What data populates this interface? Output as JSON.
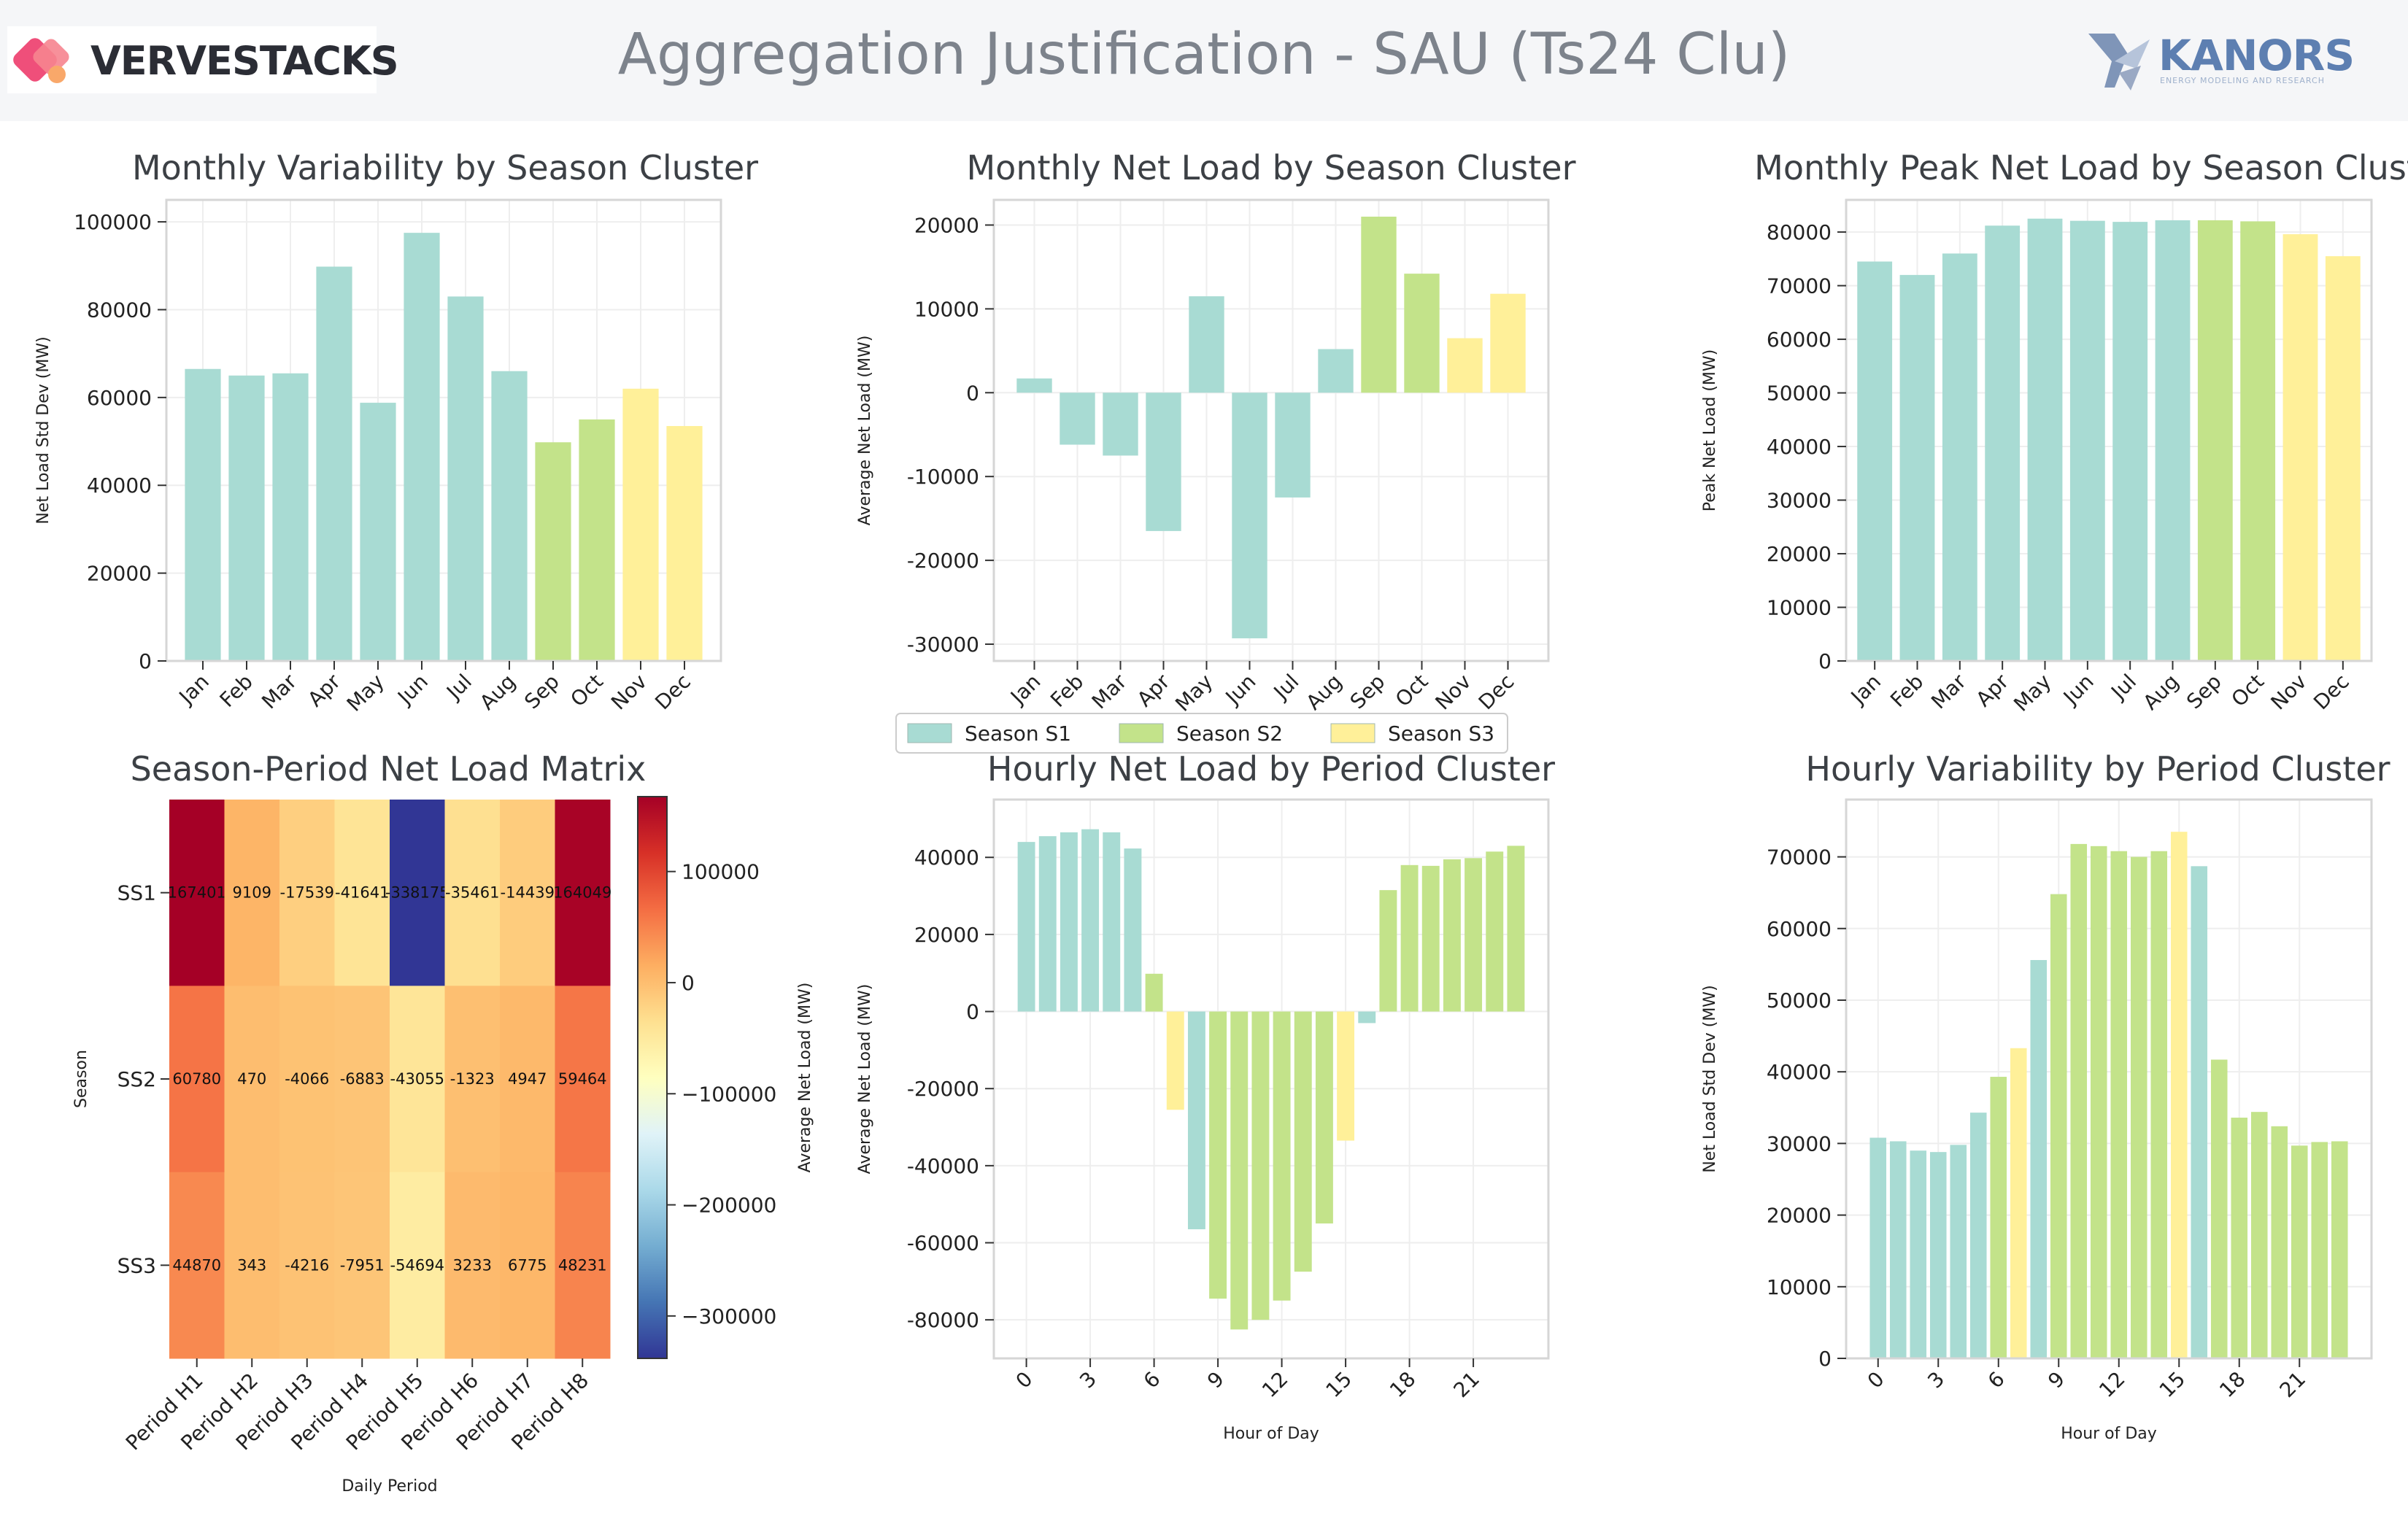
{
  "header": {
    "title": "Aggregation Justification - SAU (Ts24 Clu)",
    "left_logo_text": "VERVESTACKS",
    "right_logo_text": "KANORS",
    "right_logo_tagline": "ENERGY MODELING AND RESEARCH"
  },
  "colors": {
    "S1": "#a8dbd3",
    "S2": "#c3e38a",
    "S3": "#fff099"
  },
  "legend": {
    "items": [
      {
        "label": "Season S1",
        "color": "#a8dbd3"
      },
      {
        "label": "Season S2",
        "color": "#c3e38a"
      },
      {
        "label": "Season S3",
        "color": "#fff099"
      }
    ]
  },
  "chart_data": [
    {
      "type": "bar",
      "title": "Monthly Variability by Season Cluster",
      "xlabel": "",
      "ylabel": "Net Load Std Dev (MW)",
      "categories": [
        "Jan",
        "Feb",
        "Mar",
        "Apr",
        "May",
        "Jun",
        "Jul",
        "Aug",
        "Sep",
        "Oct",
        "Nov",
        "Dec"
      ],
      "values": [
        66500,
        65000,
        65500,
        89800,
        58800,
        97500,
        83000,
        66000,
        49800,
        55000,
        62000,
        53500
      ],
      "cluster": [
        "S1",
        "S1",
        "S1",
        "S1",
        "S1",
        "S1",
        "S1",
        "S1",
        "S2",
        "S2",
        "S3",
        "S3"
      ],
      "ylim": [
        0,
        105000
      ],
      "yticks": [
        0,
        20000,
        40000,
        60000,
        80000,
        100000
      ]
    },
    {
      "type": "bar",
      "title": "Monthly Net Load by Season Cluster",
      "xlabel": "",
      "ylabel": "Average Net Load (MW)",
      "categories": [
        "Jan",
        "Feb",
        "Mar",
        "Apr",
        "May",
        "Jun",
        "Jul",
        "Aug",
        "Sep",
        "Oct",
        "Nov",
        "Dec"
      ],
      "values": [
        1700,
        -6200,
        -7500,
        -16500,
        11500,
        -29300,
        -12500,
        5200,
        21000,
        14200,
        6500,
        11800
      ],
      "cluster": [
        "S1",
        "S1",
        "S1",
        "S1",
        "S1",
        "S1",
        "S1",
        "S1",
        "S2",
        "S2",
        "S3",
        "S3"
      ],
      "ylim": [
        -32000,
        23000
      ],
      "yticks": [
        -30000,
        -20000,
        -10000,
        0,
        10000,
        20000
      ]
    },
    {
      "type": "bar",
      "title": "Monthly Peak Net Load by Season Clust",
      "xlabel": "",
      "ylabel": "Peak Net Load (MW)",
      "categories": [
        "Jan",
        "Feb",
        "Mar",
        "Apr",
        "May",
        "Jun",
        "Jul",
        "Aug",
        "Sep",
        "Oct",
        "Nov",
        "Dec"
      ],
      "values": [
        74500,
        72000,
        76000,
        81200,
        82500,
        82100,
        81900,
        82200,
        82200,
        82000,
        79600,
        75500
      ],
      "cluster": [
        "S1",
        "S1",
        "S1",
        "S1",
        "S1",
        "S1",
        "S1",
        "S1",
        "S2",
        "S2",
        "S3",
        "S3"
      ],
      "ylim": [
        0,
        86000
      ],
      "yticks": [
        0,
        10000,
        20000,
        30000,
        40000,
        50000,
        60000,
        70000,
        80000
      ]
    },
    {
      "type": "heatmap",
      "title": "Season-Period Net Load Matrix",
      "xlabel": "Daily Period",
      "ylabel": "Season",
      "x": [
        "Period H1",
        "Period H2",
        "Period H3",
        "Period H4",
        "Period H5",
        "Period H6",
        "Period H7",
        "Period H8"
      ],
      "y": [
        "SS1",
        "SS2",
        "SS3"
      ],
      "values": [
        [
          167401,
          9109,
          -17539,
          -41641,
          -338175,
          -35461,
          -14439,
          164049
        ],
        [
          60780,
          470,
          -4066,
          -6883,
          -43055,
          -1323,
          4947,
          59464
        ],
        [
          44870,
          343,
          -4216,
          -7951,
          -54694,
          3233,
          6775,
          48231
        ]
      ],
      "colorbar": {
        "label": "Average Net Load (MW)",
        "range": [
          -338175,
          167401
        ],
        "ticks": [
          100000,
          0,
          -100000,
          -200000,
          -300000
        ]
      }
    },
    {
      "type": "bar",
      "title": "Hourly Net Load by Period Cluster",
      "xlabel": "Hour of Day",
      "ylabel": "Average Net Load (MW)",
      "x": [
        0,
        1,
        2,
        3,
        4,
        5,
        6,
        7,
        8,
        9,
        10,
        11,
        12,
        13,
        14,
        15,
        16,
        17,
        18,
        19,
        20,
        21,
        22,
        23
      ],
      "values": [
        44000,
        45500,
        46500,
        47300,
        46500,
        42300,
        9800,
        -25500,
        -56500,
        -74500,
        -82500,
        -80000,
        -75000,
        -67500,
        -55000,
        -33500,
        -3000,
        31500,
        38000,
        37800,
        39500,
        39800,
        41500,
        43000
      ],
      "cluster": [
        "S1",
        "S1",
        "S1",
        "S1",
        "S1",
        "S1",
        "S2",
        "S3",
        "S1",
        "S2",
        "S2",
        "S2",
        "S2",
        "S2",
        "S2",
        "S3",
        "S1",
        "S2",
        "S2",
        "S2",
        "S2",
        "S2",
        "S2",
        "S2"
      ],
      "ylim": [
        -90000,
        55000
      ],
      "yticks": [
        -80000,
        -60000,
        -40000,
        -20000,
        0,
        20000,
        40000
      ],
      "xticks": [
        0,
        3,
        6,
        9,
        12,
        15,
        18,
        21
      ]
    },
    {
      "type": "bar",
      "title": "Hourly Variability by Period Cluster",
      "xlabel": "Hour of Day",
      "ylabel": "Net Load Std Dev (MW)",
      "x": [
        0,
        1,
        2,
        3,
        4,
        5,
        6,
        7,
        8,
        9,
        10,
        11,
        12,
        13,
        14,
        15,
        16,
        17,
        18,
        19,
        20,
        21,
        22,
        23
      ],
      "values": [
        30800,
        30300,
        29000,
        28800,
        29800,
        34300,
        39300,
        43300,
        55600,
        64800,
        71800,
        71500,
        70800,
        70000,
        70800,
        73500,
        68700,
        41700,
        33600,
        34400,
        32400,
        29700,
        30200,
        30300
      ],
      "cluster": [
        "S1",
        "S1",
        "S1",
        "S1",
        "S1",
        "S1",
        "S2",
        "S3",
        "S1",
        "S2",
        "S2",
        "S2",
        "S2",
        "S2",
        "S2",
        "S3",
        "S1",
        "S2",
        "S2",
        "S2",
        "S2",
        "S2",
        "S2",
        "S2"
      ],
      "ylim": [
        0,
        78000
      ],
      "yticks": [
        0,
        10000,
        20000,
        30000,
        40000,
        50000,
        60000,
        70000
      ],
      "xticks": [
        0,
        3,
        6,
        9,
        12,
        15,
        18,
        21
      ]
    }
  ]
}
